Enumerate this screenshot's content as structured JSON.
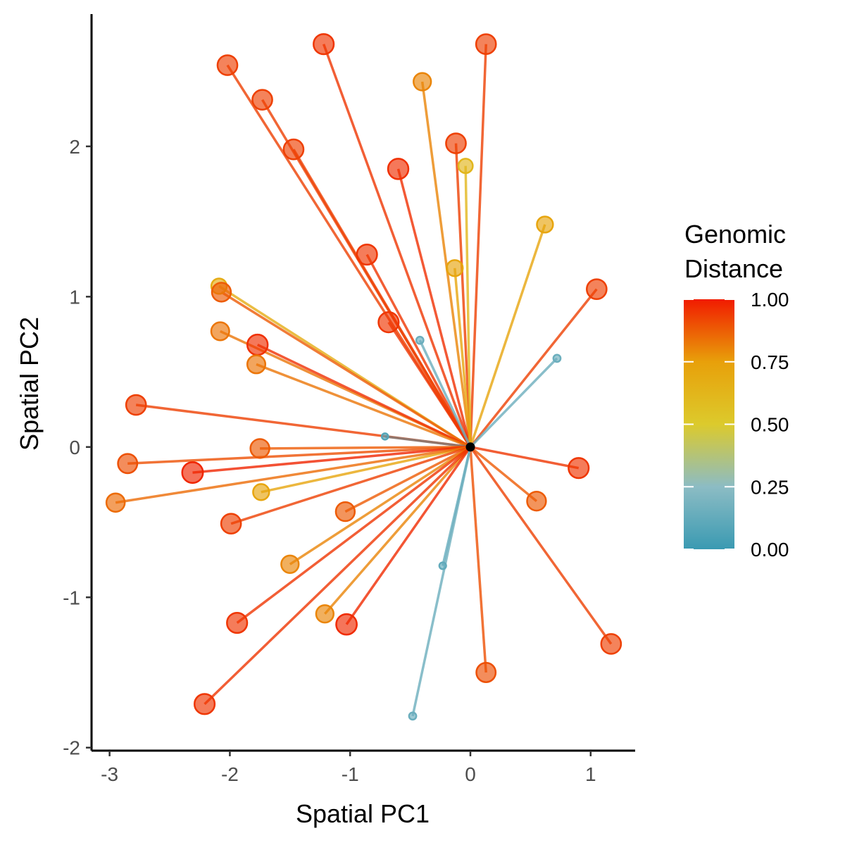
{
  "chart_data": {
    "type": "scatter",
    "title": "",
    "xlabel": "Spatial PC1",
    "ylabel": "Spatial PC2",
    "xlim": [
      -3.15,
      1.37
    ],
    "ylim": [
      -2.02,
      2.88
    ],
    "x_ticks": [
      -3,
      -2,
      -1,
      0,
      1
    ],
    "y_ticks": [
      -2,
      -1,
      0,
      1,
      2
    ],
    "x_tick_labels": [
      "-3",
      "-2",
      "-1",
      "0",
      "1"
    ],
    "y_tick_labels": [
      "-2",
      "-1",
      "0",
      "1",
      "2"
    ],
    "grid": false,
    "origin": {
      "x": 0,
      "y": 0
    },
    "legend": {
      "title_lines": [
        "Genomic",
        "Distance"
      ],
      "placement": "right",
      "ticks": [
        0.0,
        0.25,
        0.5,
        0.75,
        1.0
      ],
      "tick_labels": [
        "0.00",
        "0.25",
        "0.50",
        "0.75",
        "1.00"
      ],
      "gradient": [
        {
          "value": 0.0,
          "color": "#3a9ab2"
        },
        {
          "value": 0.25,
          "color": "#8cbcc4"
        },
        {
          "value": 0.5,
          "color": "#dcca2c"
        },
        {
          "value": 0.75,
          "color": "#e8a00a"
        },
        {
          "value": 1.0,
          "color": "#f11b00"
        }
      ]
    },
    "points": [
      {
        "x": -1.22,
        "y": 2.68,
        "dist": 0.95
      },
      {
        "x": 0.13,
        "y": 2.68,
        "dist": 0.93
      },
      {
        "x": -2.02,
        "y": 2.54,
        "dist": 0.93
      },
      {
        "x": -0.4,
        "y": 2.43,
        "dist": 0.8
      },
      {
        "x": -1.73,
        "y": 2.31,
        "dist": 0.93
      },
      {
        "x": -0.12,
        "y": 2.02,
        "dist": 0.93
      },
      {
        "x": -1.47,
        "y": 1.98,
        "dist": 0.93
      },
      {
        "x": -0.6,
        "y": 1.85,
        "dist": 0.96
      },
      {
        "x": -0.04,
        "y": 1.87,
        "dist": 0.62
      },
      {
        "x": 0.62,
        "y": 1.48,
        "dist": 0.72
      },
      {
        "x": -0.86,
        "y": 1.28,
        "dist": 0.95
      },
      {
        "x": -0.13,
        "y": 1.19,
        "dist": 0.72
      },
      {
        "x": 1.05,
        "y": 1.05,
        "dist": 0.93
      },
      {
        "x": -2.09,
        "y": 1.07,
        "dist": 0.68
      },
      {
        "x": -2.07,
        "y": 1.03,
        "dist": 0.88
      },
      {
        "x": -0.68,
        "y": 0.83,
        "dist": 0.95
      },
      {
        "x": -2.08,
        "y": 0.77,
        "dist": 0.83
      },
      {
        "x": -1.77,
        "y": 0.68,
        "dist": 0.96
      },
      {
        "x": -1.78,
        "y": 0.55,
        "dist": 0.83
      },
      {
        "x": -0.42,
        "y": 0.71,
        "dist": 0.15
      },
      {
        "x": 0.72,
        "y": 0.59,
        "dist": 0.15
      },
      {
        "x": -2.78,
        "y": 0.28,
        "dist": 0.93
      },
      {
        "x": -0.71,
        "y": 0.07,
        "dist": 0.08
      },
      {
        "x": -1.75,
        "y": -0.01,
        "dist": 0.88
      },
      {
        "x": -2.85,
        "y": -0.11,
        "dist": 0.9
      },
      {
        "x": -2.31,
        "y": -0.17,
        "dist": 0.98
      },
      {
        "x": 0.9,
        "y": -0.14,
        "dist": 0.95
      },
      {
        "x": -1.74,
        "y": -0.3,
        "dist": 0.72
      },
      {
        "x": -2.95,
        "y": -0.37,
        "dist": 0.85
      },
      {
        "x": 0.55,
        "y": -0.36,
        "dist": 0.88
      },
      {
        "x": -1.04,
        "y": -0.43,
        "dist": 0.88
      },
      {
        "x": -1.99,
        "y": -0.51,
        "dist": 0.93
      },
      {
        "x": -1.5,
        "y": -0.78,
        "dist": 0.8
      },
      {
        "x": -0.23,
        "y": -0.79,
        "dist": 0.12
      },
      {
        "x": -1.21,
        "y": -1.11,
        "dist": 0.8
      },
      {
        "x": -1.94,
        "y": -1.17,
        "dist": 0.95
      },
      {
        "x": -1.03,
        "y": -1.18,
        "dist": 0.97
      },
      {
        "x": 1.17,
        "y": -1.31,
        "dist": 0.93
      },
      {
        "x": 0.13,
        "y": -1.5,
        "dist": 0.9
      },
      {
        "x": -2.21,
        "y": -1.71,
        "dist": 0.95
      },
      {
        "x": -0.48,
        "y": -1.79,
        "dist": 0.15
      }
    ]
  }
}
